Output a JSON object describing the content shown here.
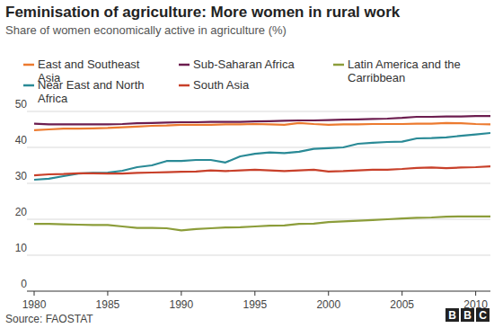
{
  "chart_data": {
    "type": "line",
    "title": "Feminisation of agriculture: More women in rural work",
    "subtitle": "Share of women economically active in agriculture (%)",
    "source": "Source: FAOSTAT",
    "logo": "BBC",
    "x": [
      1980,
      1981,
      1982,
      1983,
      1984,
      1985,
      1986,
      1987,
      1988,
      1989,
      1990,
      1991,
      1992,
      1993,
      1994,
      1995,
      1996,
      1997,
      1998,
      1999,
      2000,
      2001,
      2002,
      2003,
      2004,
      2005,
      2006,
      2007,
      2008,
      2009,
      2010,
      2011
    ],
    "xlim": [
      1980,
      2011
    ],
    "xticks": [
      1980,
      1985,
      1990,
      1995,
      2000,
      2005,
      2010
    ],
    "ylim": [
      0,
      50
    ],
    "yticks": [
      0,
      10,
      20,
      30,
      40,
      50
    ],
    "grid": true,
    "legend": "top",
    "series": [
      {
        "name": "East and Southeast Asia",
        "color": "#ec7a2f",
        "values": [
          44.8,
          45.0,
          45.2,
          45.2,
          45.3,
          45.4,
          45.6,
          45.8,
          46.0,
          46.1,
          46.3,
          46.3,
          46.3,
          46.4,
          46.4,
          46.5,
          46.4,
          46.3,
          46.8,
          46.5,
          46.3,
          46.4,
          46.4,
          46.5,
          46.5,
          46.5,
          46.6,
          46.6,
          46.8,
          46.7,
          46.5,
          46.4
        ]
      },
      {
        "name": "Near East and North Africa",
        "color": "#2a8a96",
        "values": [
          31.0,
          31.3,
          32.0,
          32.7,
          32.9,
          33.0,
          33.5,
          34.5,
          35.0,
          36.2,
          36.2,
          36.5,
          36.5,
          35.8,
          37.5,
          38.2,
          38.6,
          38.4,
          38.8,
          39.6,
          39.8,
          40.0,
          41.0,
          41.3,
          41.5,
          41.6,
          42.5,
          42.6,
          42.8,
          43.2,
          43.6,
          44.0
        ]
      },
      {
        "name": "Sub-Saharan Africa",
        "color": "#6c1d4f",
        "values": [
          46.6,
          46.4,
          46.4,
          46.4,
          46.4,
          46.4,
          46.5,
          46.7,
          46.8,
          46.9,
          47.0,
          47.0,
          47.1,
          47.1,
          47.1,
          47.2,
          47.3,
          47.4,
          47.5,
          47.5,
          47.6,
          47.7,
          47.8,
          47.9,
          48.0,
          48.2,
          48.5,
          48.5,
          48.6,
          48.6,
          48.7,
          48.7
        ]
      },
      {
        "name": "South Asia",
        "color": "#c8402a",
        "values": [
          32.2,
          32.5,
          32.6,
          32.8,
          32.8,
          32.7,
          32.7,
          32.9,
          33.0,
          33.1,
          33.2,
          33.3,
          33.6,
          33.4,
          33.6,
          33.8,
          33.6,
          33.4,
          33.6,
          33.8,
          33.3,
          33.4,
          33.6,
          33.8,
          33.8,
          34.0,
          34.3,
          34.4,
          34.2,
          34.4,
          34.5,
          34.7
        ]
      },
      {
        "name": "Latin America and the Carribbean",
        "color": "#8c9d3a",
        "values": [
          18.7,
          18.7,
          18.6,
          18.5,
          18.4,
          18.4,
          18.0,
          17.6,
          17.6,
          17.5,
          16.9,
          17.3,
          17.5,
          17.7,
          17.8,
          18.0,
          18.2,
          18.3,
          18.7,
          18.8,
          19.2,
          19.4,
          19.6,
          19.8,
          20.0,
          20.2,
          20.4,
          20.5,
          20.7,
          20.8,
          20.8,
          20.8
        ]
      }
    ]
  }
}
